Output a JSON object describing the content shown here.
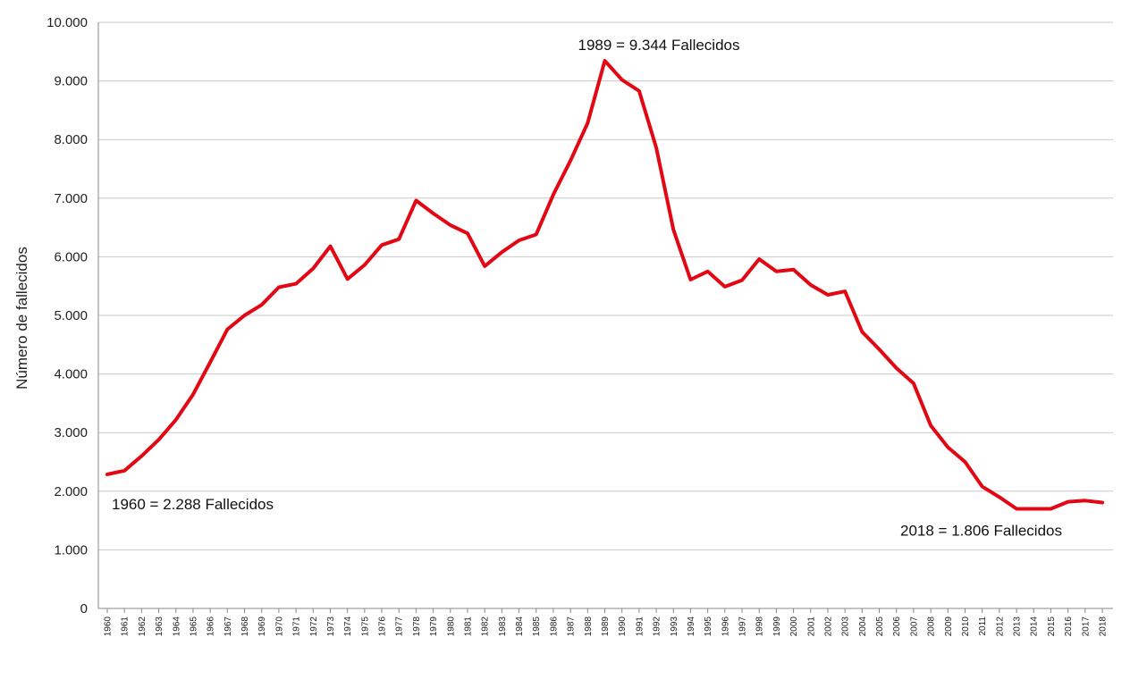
{
  "chart_data": {
    "type": "line",
    "title": "",
    "xlabel": "",
    "ylabel": "Número de fallecidos",
    "ylim": [
      0,
      10000
    ],
    "yticks": [
      0,
      1000,
      2000,
      3000,
      4000,
      5000,
      6000,
      7000,
      8000,
      9000,
      10000
    ],
    "ytick_labels": [
      "0",
      "1.000",
      "2.000",
      "3.000",
      "4.000",
      "5.000",
      "6.000",
      "7.000",
      "8.000",
      "9.000",
      "10.000"
    ],
    "grid": "horizontal",
    "legend": "none",
    "line_color": "#e30613",
    "categories": [
      "1960",
      "1961",
      "1962",
      "1963",
      "1964",
      "1965",
      "1966",
      "1967",
      "1968",
      "1969",
      "1970",
      "1971",
      "1972",
      "1973",
      "1974",
      "1975",
      "1976",
      "1977",
      "1978",
      "1979",
      "1980",
      "1981",
      "1982",
      "1983",
      "1984",
      "1985",
      "1986",
      "1987",
      "1988",
      "1989",
      "1990",
      "1991",
      "1992",
      "1993",
      "1994",
      "1995",
      "1996",
      "1997",
      "1998",
      "1999",
      "2000",
      "2001",
      "2002",
      "2003",
      "2004",
      "2005",
      "2006",
      "2007",
      "2008",
      "2009",
      "2010",
      "2011",
      "2012",
      "2013",
      "2014",
      "2015",
      "2016",
      "2017",
      "2018"
    ],
    "series": [
      {
        "values": [
          2288,
          2350,
          2600,
          2880,
          3220,
          3650,
          4200,
          4760,
          5000,
          5180,
          5480,
          5540,
          5800,
          6180,
          5620,
          5860,
          6200,
          6300,
          6960,
          6740,
          6540,
          6400,
          5840,
          6080,
          6280,
          6380,
          7060,
          7640,
          8280,
          9344,
          9020,
          8830,
          7860,
          6460,
          5610,
          5750,
          5490,
          5600,
          5960,
          5750,
          5780,
          5520,
          5350,
          5410,
          4720,
          4420,
          4100,
          3840,
          3120,
          2750,
          2500,
          2080,
          1900,
          1700,
          1700,
          1700,
          1820,
          1840,
          1806
        ]
      }
    ],
    "annotations": [
      {
        "category": "1989",
        "text": "1989 = 9.344 Fallecidos"
      },
      {
        "category": "1960",
        "text": "1960 = 2.288 Fallecidos"
      },
      {
        "category": "2018",
        "text": "2018 = 1.806 Fallecidos"
      }
    ]
  }
}
